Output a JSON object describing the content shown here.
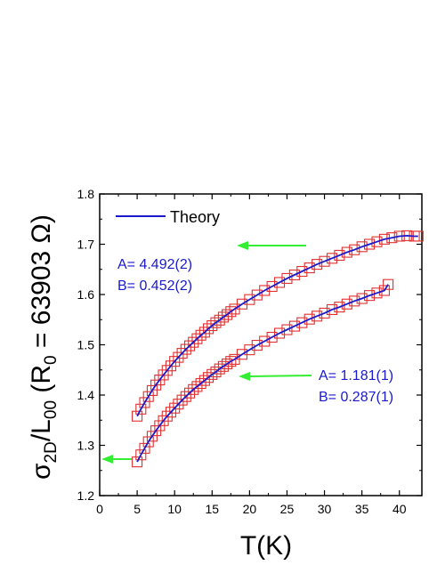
{
  "chart_data": {
    "type": "scatter",
    "xlabel": "T(K)",
    "ylabel": {
      "sigma": "σ",
      "sigma_sub": "2D",
      "slash": "/L",
      "l_sub": "00",
      "paren_open": " (R",
      "r_sub": "0",
      "rest": " = 63903 Ω)"
    },
    "xlim": [
      0,
      43
    ],
    "ylim": [
      1.2,
      1.8
    ],
    "xticks": [
      0,
      5,
      10,
      15,
      20,
      25,
      30,
      35,
      40
    ],
    "yticks": [
      1.2,
      1.3,
      1.4,
      1.5,
      1.6,
      1.7,
      1.8
    ],
    "legend": {
      "label": "Theory",
      "placement": "top-left"
    },
    "colors": {
      "theory": "#1a1acc",
      "marker": "#e03030",
      "arrow": "#33ee33",
      "annotation": "#1a1acc"
    },
    "series": [
      {
        "marker": "open-square",
        "x": [
          5,
          5.5,
          6,
          6.5,
          7,
          7.5,
          8,
          8.5,
          9,
          9.5,
          10,
          10.5,
          11,
          11.5,
          12,
          12.5,
          13,
          13.5,
          14,
          14.5,
          15,
          15.5,
          16,
          16.5,
          17,
          17.5,
          18,
          19,
          20,
          21,
          22,
          23,
          24,
          25,
          26,
          27,
          28,
          29,
          30,
          31,
          32,
          33,
          34,
          35,
          36,
          37,
          38,
          39,
          40,
          41,
          42,
          42.5
        ],
        "y": [
          1.358,
          1.372,
          1.385,
          1.397,
          1.409,
          1.42,
          1.43,
          1.44,
          1.449,
          1.458,
          1.467,
          1.475,
          1.483,
          1.491,
          1.498,
          1.505,
          1.512,
          1.519,
          1.525,
          1.532,
          1.538,
          1.544,
          1.549,
          1.555,
          1.56,
          1.566,
          1.571,
          1.581,
          1.59,
          1.599,
          1.608,
          1.616,
          1.624,
          1.632,
          1.639,
          1.646,
          1.653,
          1.66,
          1.666,
          1.672,
          1.678,
          1.684,
          1.689,
          1.695,
          1.7,
          1.705,
          1.71,
          1.713,
          1.716,
          1.717,
          1.716,
          1.716
        ],
        "fit": {
          "A": "4.492(2)",
          "B": "0.452(2)"
        },
        "annotation": {
          "a_text": "A=  4.492(2)",
          "b_text": "B=  0.452(2)"
        }
      },
      {
        "marker": "open-square",
        "x": [
          5,
          5.5,
          6,
          6.5,
          7,
          7.5,
          8,
          8.5,
          9,
          9.5,
          10,
          10.5,
          11,
          11.5,
          12,
          12.5,
          13,
          13.5,
          14,
          14.5,
          15,
          15.5,
          16,
          16.5,
          17,
          17.5,
          18,
          19,
          20,
          21,
          22,
          23,
          24,
          25,
          26,
          27,
          28,
          29,
          30,
          31,
          32,
          33,
          34,
          35,
          36,
          37,
          38,
          38.5
        ],
        "y": [
          1.267,
          1.281,
          1.294,
          1.307,
          1.318,
          1.329,
          1.339,
          1.349,
          1.358,
          1.366,
          1.374,
          1.382,
          1.39,
          1.397,
          1.404,
          1.411,
          1.417,
          1.423,
          1.429,
          1.435,
          1.441,
          1.446,
          1.452,
          1.457,
          1.462,
          1.467,
          1.471,
          1.481,
          1.49,
          1.499,
          1.507,
          1.515,
          1.523,
          1.53,
          1.537,
          1.544,
          1.551,
          1.557,
          1.563,
          1.57,
          1.575,
          1.581,
          1.587,
          1.592,
          1.598,
          1.603,
          1.608,
          1.62
        ],
        "fit": {
          "A": "1.181(1)",
          "B": "0.287(1)"
        },
        "annotation": {
          "a_text": "A=  1.181(1)",
          "b_text": "B=  0.287(1)"
        }
      }
    ]
  }
}
